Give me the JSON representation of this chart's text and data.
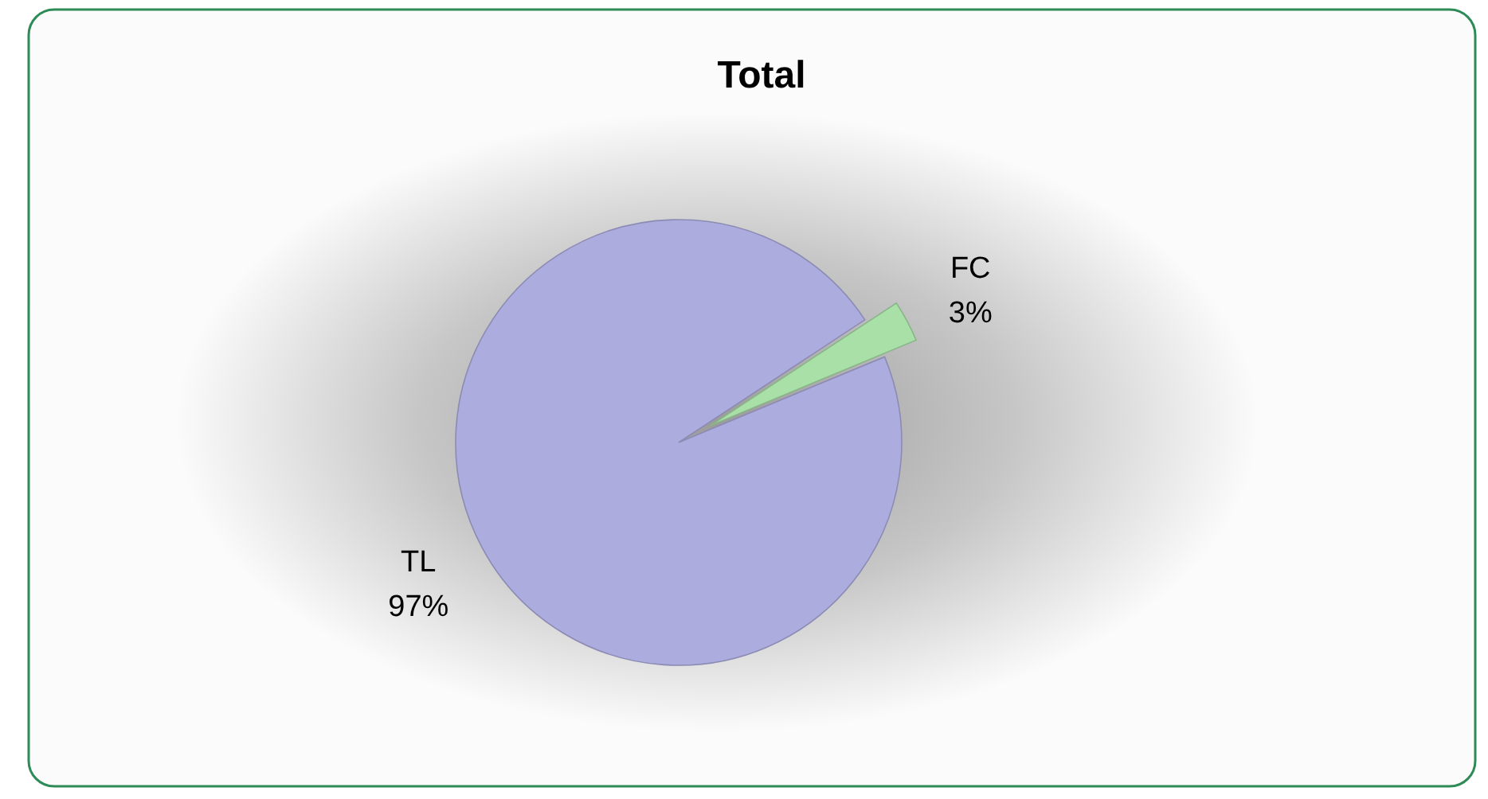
{
  "chart_data": {
    "type": "pie",
    "title": "Total",
    "categories": [
      "TL",
      "FC"
    ],
    "values": [
      97,
      3
    ],
    "colors": [
      "#acacdf",
      "#a8e0a8"
    ],
    "value_labels": [
      "97%",
      "3%"
    ]
  }
}
